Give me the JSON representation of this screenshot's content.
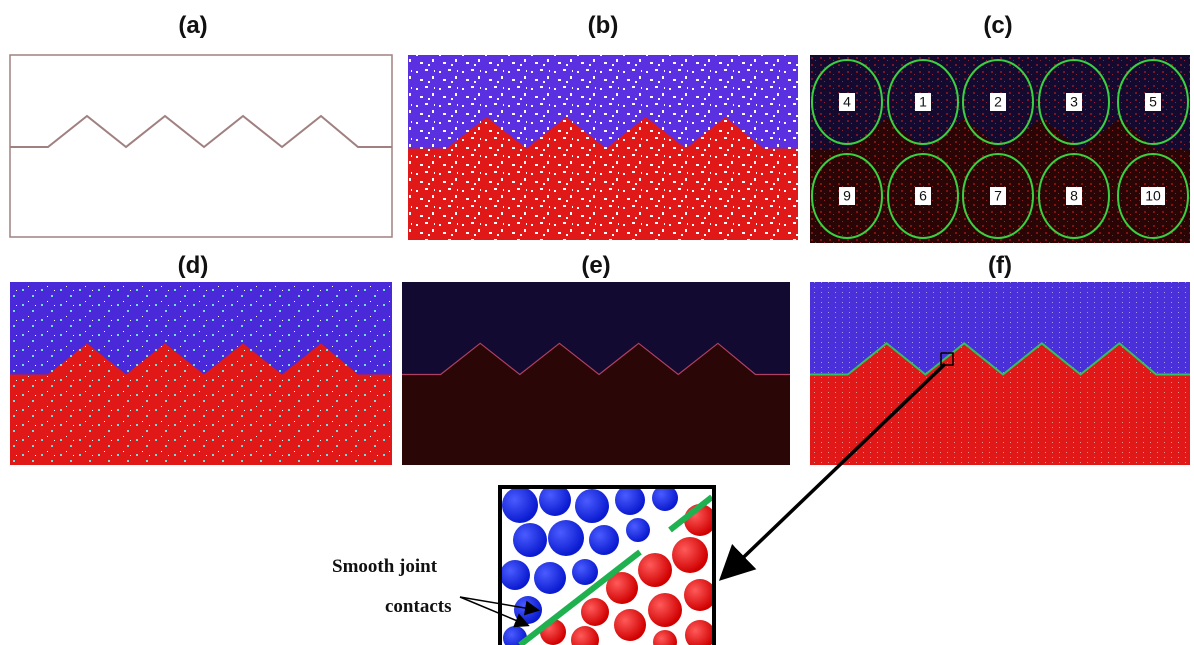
{
  "panels": [
    {
      "label": "(a)"
    },
    {
      "label": "(b)"
    },
    {
      "label": "(c)",
      "regions": [
        "4",
        "1",
        "2",
        "3",
        "5",
        "9",
        "6",
        "7",
        "8",
        "10"
      ]
    },
    {
      "label": "(d)"
    },
    {
      "label": "(e)"
    },
    {
      "label": "(f)"
    }
  ],
  "inset": {
    "annotation": [
      "Smooth joint",
      "contacts"
    ]
  }
}
